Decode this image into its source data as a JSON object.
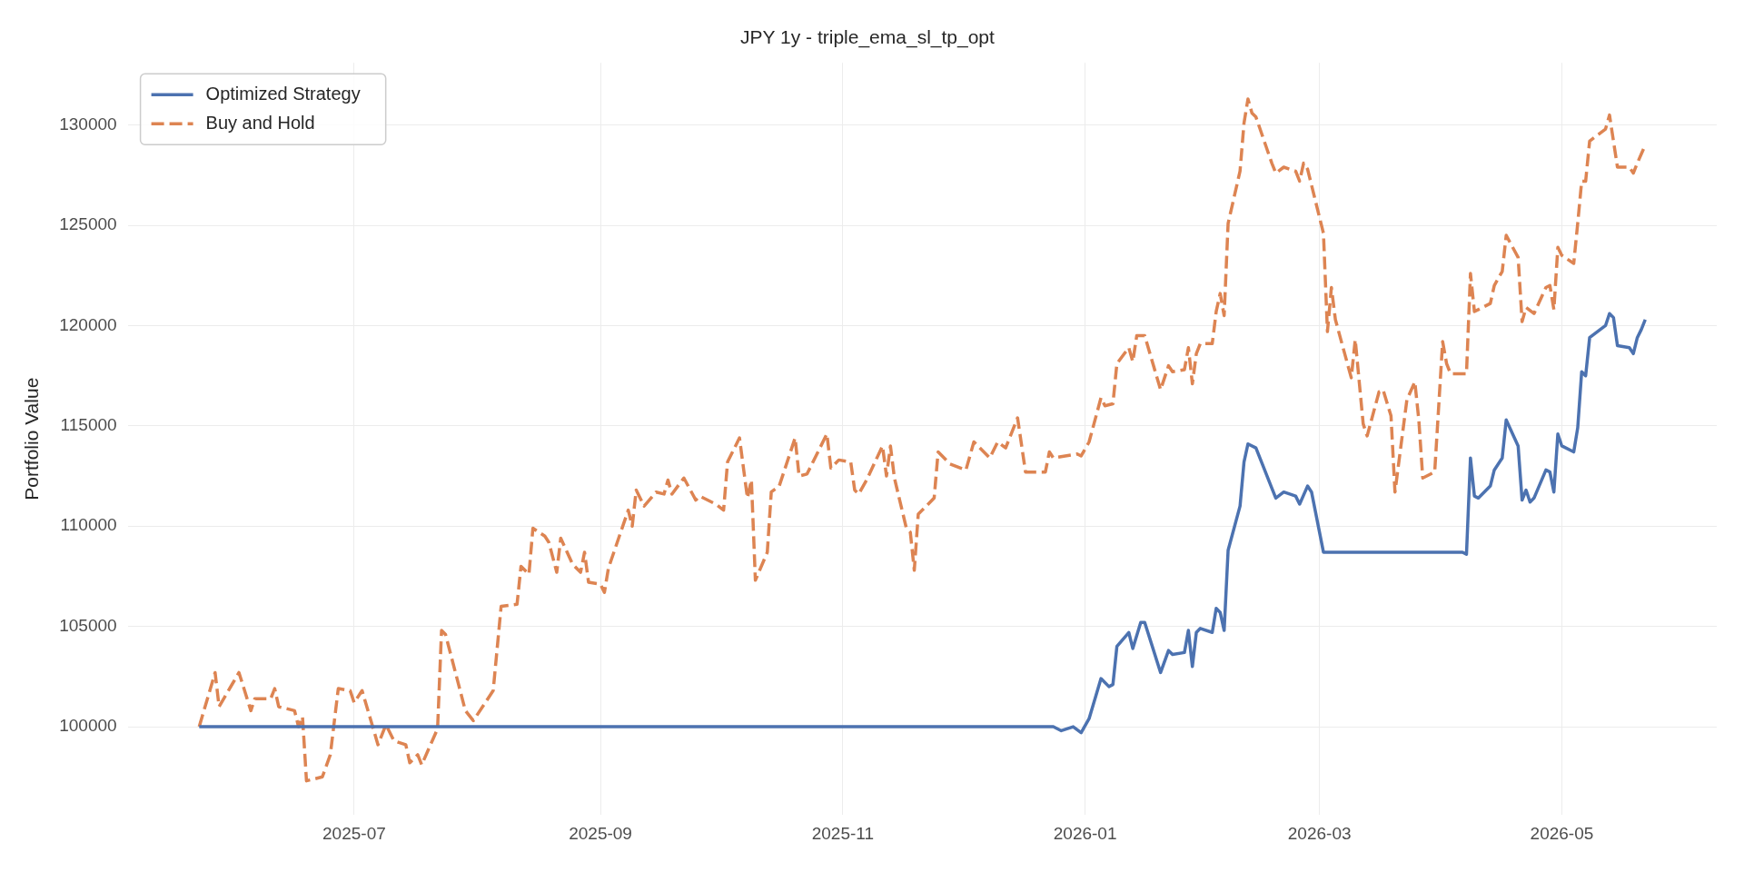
{
  "chart_data": {
    "type": "line",
    "title": "JPY 1y - triple_ema_sl_tp_opt",
    "ylabel": "Portfolio Value",
    "xlim": [
      "2025-05-05",
      "2026-06-09"
    ],
    "xticks": [
      "2025-07",
      "2025-09",
      "2025-11",
      "2026-01",
      "2026-03",
      "2026-05"
    ],
    "ylim": [
      95600,
      133100
    ],
    "yticks": [
      100000,
      105000,
      110000,
      115000,
      120000,
      125000,
      130000
    ],
    "grid": true,
    "legend": "top left",
    "series": [
      {
        "name": "Optimized Strategy",
        "color": "#4c72b0",
        "line_style": "solid",
        "x": [
          "2025-05-23",
          "2025-12-24",
          "2025-12-26",
          "2025-12-29",
          "2025-12-31",
          "2026-01-02",
          "2026-01-05",
          "2026-01-07",
          "2026-01-08",
          "2026-01-09",
          "2026-01-12",
          "2026-01-13",
          "2026-01-15",
          "2026-01-16",
          "2026-01-20",
          "2026-01-22",
          "2026-01-23",
          "2026-01-26",
          "2026-01-27",
          "2026-01-28",
          "2026-01-29",
          "2026-01-30",
          "2026-02-02",
          "2026-02-03",
          "2026-02-04",
          "2026-02-05",
          "2026-02-06",
          "2026-02-09",
          "2026-02-10",
          "2026-02-11",
          "2026-02-13",
          "2026-02-17",
          "2026-02-18",
          "2026-02-20",
          "2026-02-23",
          "2026-02-24",
          "2026-02-26",
          "2026-02-27",
          "2026-03-02",
          "2026-04-06",
          "2026-04-07",
          "2026-04-08",
          "2026-04-09",
          "2026-04-10",
          "2026-04-13",
          "2026-04-14",
          "2026-04-16",
          "2026-04-17",
          "2026-04-20",
          "2026-04-21",
          "2026-04-22",
          "2026-04-23",
          "2026-04-24",
          "2026-04-27",
          "2026-04-28",
          "2026-04-29",
          "2026-04-30",
          "2026-05-01",
          "2026-05-04",
          "2026-05-05",
          "2026-05-06",
          "2026-05-07",
          "2026-05-08",
          "2026-05-12",
          "2026-05-13",
          "2026-05-14",
          "2026-05-15",
          "2026-05-18",
          "2026-05-19",
          "2026-05-20",
          "2026-05-21",
          "2026-05-22"
        ],
        "values": [
          100000,
          100000,
          99800,
          100000,
          99700,
          100400,
          102400,
          102000,
          102100,
          104000,
          104700,
          103900,
          105200,
          105200,
          102700,
          103800,
          103600,
          103700,
          104800,
          103000,
          104700,
          104900,
          104700,
          105900,
          105700,
          104800,
          108800,
          111000,
          113200,
          114100,
          113900,
          111900,
          111400,
          111700,
          111500,
          111100,
          112000,
          111700,
          108700,
          108700,
          108600,
          113400,
          111500,
          111400,
          112000,
          112800,
          113400,
          115300,
          114000,
          111300,
          111800,
          111200,
          111400,
          112800,
          112700,
          111700,
          114600,
          114000,
          113700,
          114900,
          117700,
          117500,
          119400,
          120000,
          120600,
          120400,
          119000,
          118900,
          118600,
          119400,
          119800,
          120300
        ]
      },
      {
        "name": "Buy and Hold",
        "color": "#dd8452",
        "line_style": "dashed",
        "x": [
          "2025-05-23",
          "2025-05-27",
          "2025-05-28",
          "2025-06-02",
          "2025-06-05",
          "2025-06-06",
          "2025-06-10",
          "2025-06-11",
          "2025-06-12",
          "2025-06-16",
          "2025-06-17",
          "2025-06-18",
          "2025-06-19",
          "2025-06-23",
          "2025-06-25",
          "2025-06-27",
          "2025-06-30",
          "2025-07-01",
          "2025-07-03",
          "2025-07-07",
          "2025-07-09",
          "2025-07-11",
          "2025-07-14",
          "2025-07-15",
          "2025-07-17",
          "2025-07-18",
          "2025-07-22",
          "2025-07-23",
          "2025-07-24",
          "2025-07-29",
          "2025-07-31",
          "2025-08-05",
          "2025-08-07",
          "2025-08-11",
          "2025-08-12",
          "2025-08-14",
          "2025-08-15",
          "2025-08-18",
          "2025-08-19",
          "2025-08-21",
          "2025-08-22",
          "2025-08-25",
          "2025-08-27",
          "2025-08-28",
          "2025-08-29",
          "2025-09-01",
          "2025-09-02",
          "2025-09-03",
          "2025-09-08",
          "2025-09-09",
          "2025-09-10",
          "2025-09-12",
          "2025-09-15",
          "2025-09-17",
          "2025-09-18",
          "2025-09-19",
          "2025-09-22",
          "2025-09-25",
          "2025-09-26",
          "2025-09-30",
          "2025-10-02",
          "2025-10-03",
          "2025-10-06",
          "2025-10-08",
          "2025-10-09",
          "2025-10-10",
          "2025-10-13",
          "2025-10-14",
          "2025-10-16",
          "2025-10-20",
          "2025-10-21",
          "2025-10-23",
          "2025-10-28",
          "2025-10-29",
          "2025-10-31",
          "2025-11-03",
          "2025-11-04",
          "2025-11-05",
          "2025-11-07",
          "2025-11-11",
          "2025-11-12",
          "2025-11-13",
          "2025-11-14",
          "2025-11-17",
          "2025-11-18",
          "2025-11-19",
          "2025-11-20",
          "2025-11-24",
          "2025-11-25",
          "2025-11-28",
          "2025-12-02",
          "2025-12-04",
          "2025-12-08",
          "2025-12-10",
          "2025-12-12",
          "2025-12-15",
          "2025-12-17",
          "2025-12-22",
          "2025-12-23",
          "2025-12-24",
          "2025-12-30",
          "2025-12-31",
          "2026-01-02",
          "2026-01-05",
          "2026-01-06",
          "2026-01-08",
          "2026-01-09",
          "2026-01-12",
          "2026-01-13",
          "2026-01-14",
          "2026-01-16",
          "2026-01-20",
          "2026-01-22",
          "2026-01-23",
          "2026-01-26",
          "2026-01-27",
          "2026-01-28",
          "2026-01-29",
          "2026-01-30",
          "2026-02-02",
          "2026-02-03",
          "2026-02-04",
          "2026-02-05",
          "2026-02-06",
          "2026-02-09",
          "2026-02-10",
          "2026-02-11",
          "2026-02-12",
          "2026-02-13",
          "2026-02-17",
          "2026-02-18",
          "2026-02-20",
          "2026-02-23",
          "2026-02-24",
          "2026-02-25",
          "2026-02-26",
          "2026-03-02",
          "2026-03-03",
          "2026-03-04",
          "2026-03-05",
          "2026-03-09",
          "2026-03-10",
          "2026-03-12",
          "2026-03-13",
          "2026-03-16",
          "2026-03-17",
          "2026-03-19",
          "2026-03-20",
          "2026-03-23",
          "2026-03-25",
          "2026-03-26",
          "2026-03-27",
          "2026-03-30",
          "2026-04-01",
          "2026-04-02",
          "2026-04-03",
          "2026-04-07",
          "2026-04-08",
          "2026-04-09",
          "2026-04-13",
          "2026-04-14",
          "2026-04-16",
          "2026-04-17",
          "2026-04-20",
          "2026-04-21",
          "2026-04-22",
          "2026-04-24",
          "2026-04-27",
          "2026-04-28",
          "2026-04-29",
          "2026-04-30",
          "2026-05-01",
          "2026-05-04",
          "2026-05-05",
          "2026-05-06",
          "2026-05-07",
          "2026-05-08",
          "2026-05-12",
          "2026-05-13",
          "2026-05-15",
          "2026-05-18",
          "2026-05-19",
          "2026-05-20",
          "2026-05-22"
        ],
        "values": [
          100000,
          102700,
          101000,
          102700,
          100800,
          101400,
          101400,
          101900,
          101000,
          100800,
          100000,
          100500,
          97300,
          97500,
          98600,
          101900,
          101800,
          101200,
          101800,
          99100,
          100100,
          99300,
          99100,
          98200,
          98600,
          98100,
          99900,
          104800,
          104600,
          100800,
          100300,
          101800,
          106000,
          106100,
          108000,
          107600,
          109900,
          109500,
          109200,
          107700,
          109400,
          108100,
          107700,
          108700,
          107200,
          107100,
          106700,
          107900,
          110800,
          110000,
          111800,
          111000,
          111700,
          111600,
          112300,
          111600,
          112400,
          111300,
          111500,
          111100,
          110800,
          113200,
          114400,
          111400,
          112300,
          107300,
          108700,
          111700,
          112000,
          114400,
          112500,
          112600,
          114600,
          112900,
          113300,
          113200,
          111800,
          111600,
          112300,
          114000,
          112500,
          114000,
          112400,
          109900,
          109700,
          107800,
          110600,
          111400,
          113700,
          113100,
          112800,
          114200,
          113400,
          114200,
          113900,
          115400,
          112700,
          112700,
          113700,
          113400,
          113600,
          113500,
          114200,
          116400,
          116000,
          116100,
          118100,
          118900,
          118200,
          119500,
          119500,
          116800,
          118000,
          117700,
          117800,
          118900,
          117100,
          118600,
          119100,
          119100,
          120700,
          121600,
          120500,
          125100,
          127700,
          130100,
          131300,
          130600,
          130400,
          128100,
          127600,
          127900,
          127700,
          127200,
          128100,
          127800,
          124600,
          119700,
          121900,
          120300,
          117400,
          119300,
          115100,
          114500,
          116700,
          116800,
          115500,
          111700,
          116300,
          117200,
          115300,
          112400,
          112700,
          119200,
          118100,
          117600,
          117600,
          122600,
          120700,
          121100,
          122000,
          122700,
          124500,
          123400,
          120200,
          120900,
          120600,
          121900,
          122000,
          120800,
          123900,
          123500,
          123100,
          125100,
          127200,
          127200,
          129200,
          129800,
          130500,
          127900,
          127900,
          127600,
          128100,
          129000
        ]
      }
    ]
  }
}
